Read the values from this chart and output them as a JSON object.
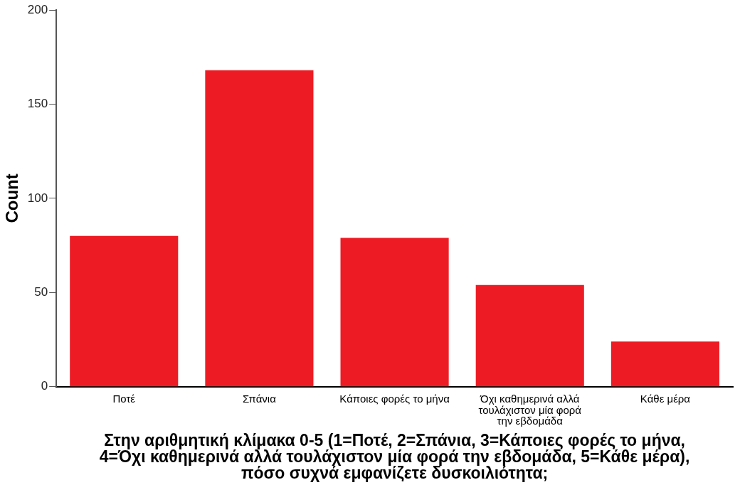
{
  "chart_data": {
    "type": "bar",
    "xlabel": "Στην αριθμητική κλίμακα 0-5 (1=Ποτέ, 2=Σπάνια, 3=Κάποιες φορές το μήνα, 4=Όχι καθημερινά αλλά τουλάχιστον μία φορά την εβδομάδα, 5=Κάθε μέρα), πόσο συχνά εμφανίζετε δυσκοιλιότητα;",
    "ylabel": "Count",
    "categories": [
      "Ποτέ",
      "Σπάνια",
      "Κάποιες φορές το μήνα",
      "Όχι καθημερινά αλλά τουλάχιστον μία φορά την εβδομάδα",
      "Κάθε μέρα"
    ],
    "values": [
      80,
      168,
      79,
      54,
      24
    ],
    "color": "#ed1c24",
    "ylim": [
      0,
      200
    ],
    "yticks": [
      0,
      50,
      100,
      150,
      200
    ],
    "grid": false,
    "legend": false
  }
}
